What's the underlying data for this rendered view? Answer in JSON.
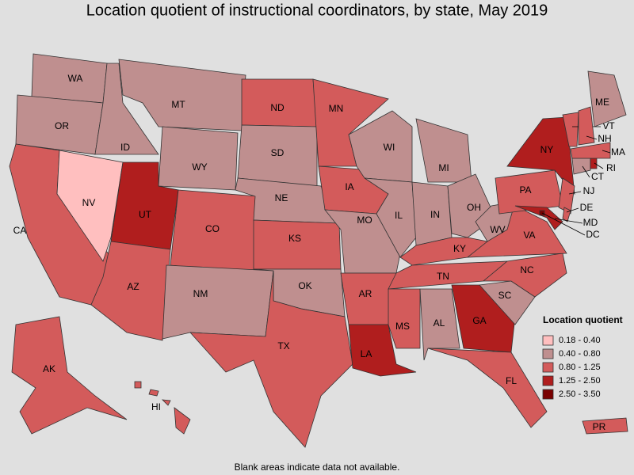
{
  "title": "Location quotient of instructional coordinators, by state, May 2019",
  "legend": {
    "title": "Location quotient",
    "classes": [
      {
        "label": "0.18 - 0.40",
        "color": "#ffbfbf"
      },
      {
        "label": "0.40 - 0.80",
        "color": "#bf8f8f"
      },
      {
        "label": "0.80 - 1.25",
        "color": "#d35b5b"
      },
      {
        "label": "1.25 - 2.50",
        "color": "#b01e1e"
      },
      {
        "label": "2.50 - 3.50",
        "color": "#7a0000"
      }
    ]
  },
  "states": [
    {
      "label": "WA",
      "class": "0.40 - 0.80"
    },
    {
      "label": "OR",
      "class": "0.40 - 0.80"
    },
    {
      "label": "CA",
      "class": "0.80 - 1.25"
    },
    {
      "label": "NV",
      "class": "0.18 - 0.40"
    },
    {
      "label": "ID",
      "class": "0.40 - 0.80"
    },
    {
      "label": "MT",
      "class": "0.40 - 0.80"
    },
    {
      "label": "WY",
      "class": "0.40 - 0.80"
    },
    {
      "label": "UT",
      "class": "1.25 - 2.50"
    },
    {
      "label": "AZ",
      "class": "0.80 - 1.25"
    },
    {
      "label": "CO",
      "class": "0.80 - 1.25"
    },
    {
      "label": "NM",
      "class": "0.40 - 0.80"
    },
    {
      "label": "ND",
      "class": "0.80 - 1.25"
    },
    {
      "label": "SD",
      "class": "0.40 - 0.80"
    },
    {
      "label": "NE",
      "class": "0.40 - 0.80"
    },
    {
      "label": "KS",
      "class": "0.80 - 1.25"
    },
    {
      "label": "OK",
      "class": "0.40 - 0.80"
    },
    {
      "label": "TX",
      "class": "0.80 - 1.25"
    },
    {
      "label": "MN",
      "class": "0.80 - 1.25"
    },
    {
      "label": "IA",
      "class": "0.80 - 1.25"
    },
    {
      "label": "MO",
      "class": "0.40 - 0.80"
    },
    {
      "label": "AR",
      "class": "0.80 - 1.25"
    },
    {
      "label": "LA",
      "class": "1.25 - 2.50"
    },
    {
      "label": "WI",
      "class": "0.40 - 0.80"
    },
    {
      "label": "IL",
      "class": "0.40 - 0.80"
    },
    {
      "label": "MI",
      "class": "0.40 - 0.80"
    },
    {
      "label": "IN",
      "class": "0.40 - 0.80"
    },
    {
      "label": "OH",
      "class": "0.40 - 0.80"
    },
    {
      "label": "KY",
      "class": "0.80 - 1.25"
    },
    {
      "label": "TN",
      "class": "0.80 - 1.25"
    },
    {
      "label": "MS",
      "class": "0.80 - 1.25"
    },
    {
      "label": "AL",
      "class": "0.40 - 0.80"
    },
    {
      "label": "GA",
      "class": "1.25 - 2.50"
    },
    {
      "label": "FL",
      "class": "0.80 - 1.25"
    },
    {
      "label": "SC",
      "class": "0.40 - 0.80"
    },
    {
      "label": "NC",
      "class": "0.80 - 1.25"
    },
    {
      "label": "VA",
      "class": "0.80 - 1.25"
    },
    {
      "label": "WV",
      "class": "0.40 - 0.80"
    },
    {
      "label": "PA",
      "class": "0.80 - 1.25"
    },
    {
      "label": "NY",
      "class": "1.25 - 2.50"
    },
    {
      "label": "NJ",
      "class": "0.80 - 1.25"
    },
    {
      "label": "DE",
      "class": "0.80 - 1.25"
    },
    {
      "label": "MD",
      "class": "1.25 - 2.50"
    },
    {
      "label": "DC",
      "class": "2.50 - 3.50"
    },
    {
      "label": "CT",
      "class": "0.40 - 0.80"
    },
    {
      "label": "RI",
      "class": "1.25 - 2.50"
    },
    {
      "label": "MA",
      "class": "0.80 - 1.25"
    },
    {
      "label": "VT",
      "class": "0.80 - 1.25"
    },
    {
      "label": "NH",
      "class": "0.80 - 1.25"
    },
    {
      "label": "ME",
      "class": "0.40 - 0.80"
    },
    {
      "label": "AK",
      "class": "0.80 - 1.25"
    },
    {
      "label": "HI",
      "class": "0.80 - 1.25"
    },
    {
      "label": "PR",
      "class": "0.80 - 1.25"
    }
  ],
  "note": "Blank areas indicate data not available."
}
